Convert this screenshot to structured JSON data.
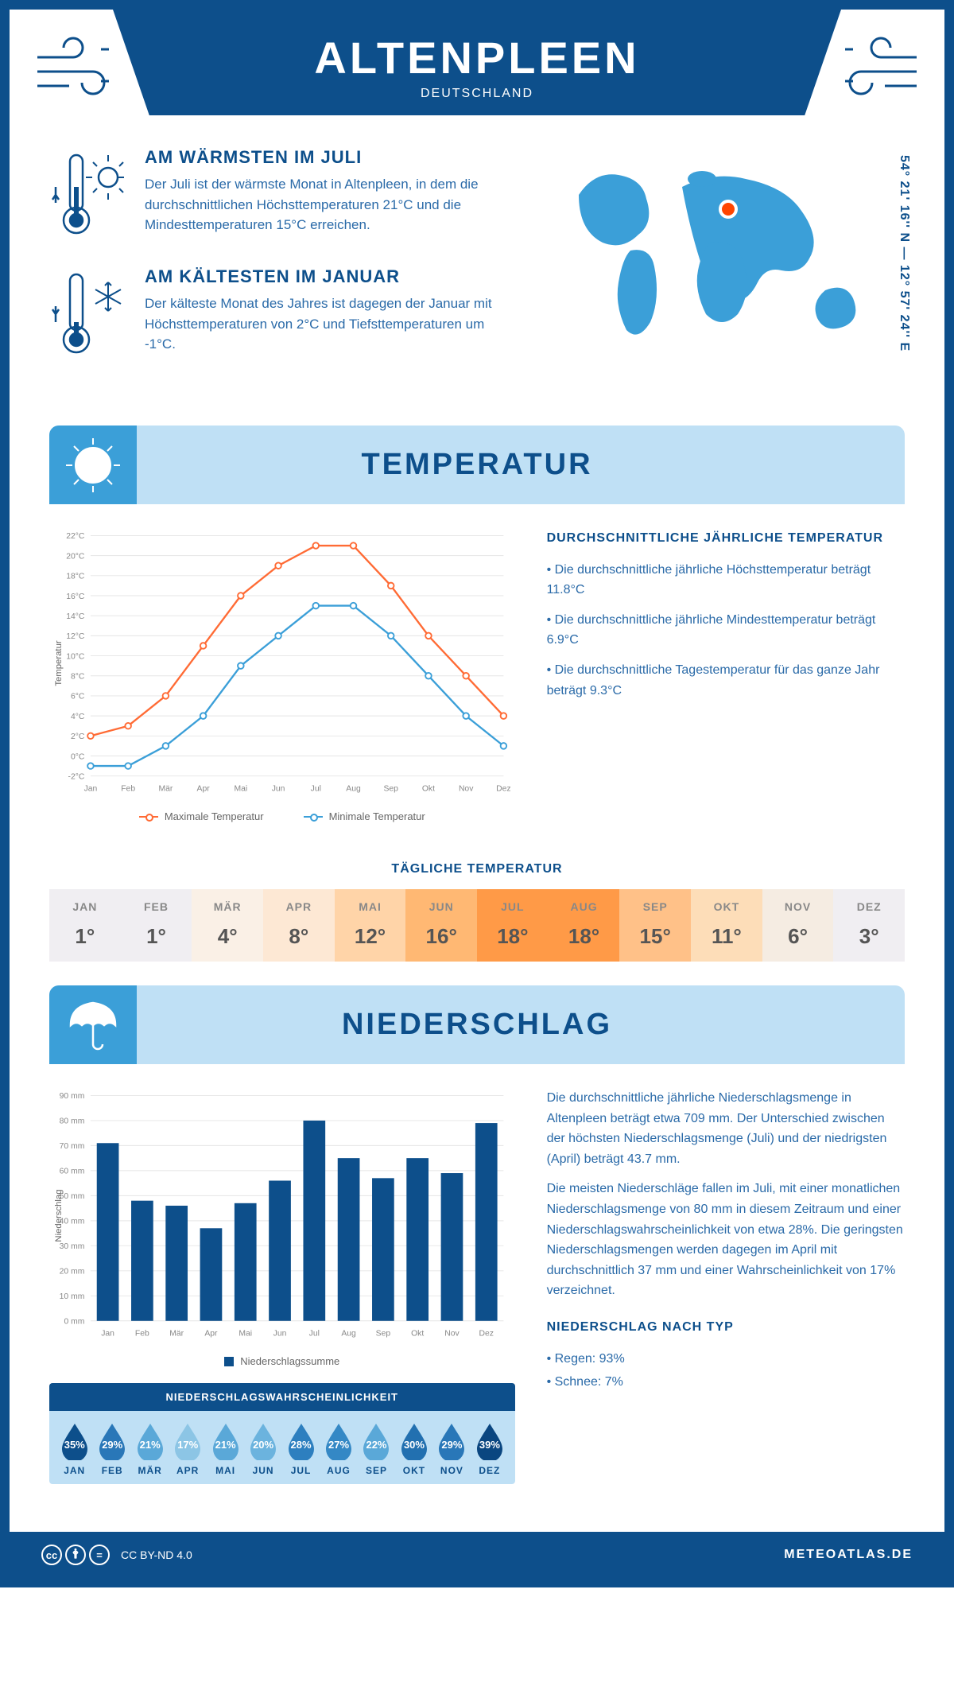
{
  "header": {
    "title": "ALTENPLEEN",
    "country": "DEUTSCHLAND",
    "coords": "54° 21' 16'' N — 12° 57' 24'' E"
  },
  "intro": {
    "warm": {
      "heading": "AM WÄRMSTEN IM JULI",
      "body": "Der Juli ist der wärmste Monat in Altenpleen, in dem die durchschnittlichen Höchsttemperaturen 21°C und die Mindesttemperaturen 15°C erreichen."
    },
    "cold": {
      "heading": "AM KÄLTESTEN IM JANUAR",
      "body": "Der kälteste Monat des Jahres ist dagegen der Januar mit Höchsttemperaturen von 2°C und Tiefsttemperaturen um -1°C."
    }
  },
  "temp_section": {
    "title": "TEMPERATUR",
    "chart": {
      "months": [
        "Jan",
        "Feb",
        "Mär",
        "Apr",
        "Mai",
        "Jun",
        "Jul",
        "Aug",
        "Sep",
        "Okt",
        "Nov",
        "Dez"
      ],
      "max": [
        2,
        3,
        6,
        11,
        16,
        19,
        21,
        21,
        17,
        12,
        8,
        4
      ],
      "min": [
        -1,
        -1,
        1,
        4,
        9,
        12,
        15,
        15,
        12,
        8,
        4,
        1
      ],
      "ymin": -2,
      "ymax": 22,
      "ystep": 2,
      "max_color": "#ff6b35",
      "min_color": "#3b9fd8",
      "ylabel": "Temperatur",
      "legend_max": "Maximale Temperatur",
      "legend_min": "Minimale Temperatur"
    },
    "text": {
      "heading": "DURCHSCHNITTLICHE JÄHRLICHE TEMPERATUR",
      "b1": "• Die durchschnittliche jährliche Höchsttemperatur beträgt 11.8°C",
      "b2": "• Die durchschnittliche jährliche Mindesttemperatur beträgt 6.9°C",
      "b3": "• Die durchschnittliche Tagestemperatur für das ganze Jahr beträgt 9.3°C"
    },
    "daily": {
      "title": "TÄGLICHE TEMPERATUR",
      "months": [
        "JAN",
        "FEB",
        "MÄR",
        "APR",
        "MAI",
        "JUN",
        "JUL",
        "AUG",
        "SEP",
        "OKT",
        "NOV",
        "DEZ"
      ],
      "values": [
        "1°",
        "1°",
        "4°",
        "8°",
        "12°",
        "16°",
        "18°",
        "18°",
        "15°",
        "11°",
        "6°",
        "3°"
      ],
      "colors": [
        "#f0eef2",
        "#f0eef2",
        "#faf0e6",
        "#fde8d4",
        "#ffd4a8",
        "#ffb873",
        "#ff9a47",
        "#ff9a47",
        "#ffc188",
        "#fdddb8",
        "#f5ece2",
        "#f0eef2"
      ]
    }
  },
  "precip_section": {
    "title": "NIEDERSCHLAG",
    "chart": {
      "months": [
        "Jan",
        "Feb",
        "Mär",
        "Apr",
        "Mai",
        "Jun",
        "Jul",
        "Aug",
        "Sep",
        "Okt",
        "Nov",
        "Dez"
      ],
      "values": [
        71,
        48,
        46,
        37,
        47,
        56,
        80,
        65,
        57,
        65,
        59,
        79
      ],
      "ymax": 90,
      "ystep": 10,
      "bar_color": "#0d4f8b",
      "ylabel": "Niederschlag",
      "legend": "Niederschlagssumme"
    },
    "text": {
      "p1": "Die durchschnittliche jährliche Niederschlagsmenge in Altenpleen beträgt etwa 709 mm. Der Unterschied zwischen der höchsten Niederschlagsmenge (Juli) und der niedrigsten (April) beträgt 43.7 mm.",
      "p2": "Die meisten Niederschläge fallen im Juli, mit einer monatlichen Niederschlagsmenge von 80 mm in diesem Zeitraum und einer Niederschlagswahrscheinlichkeit von etwa 28%. Die geringsten Niederschlagsmengen werden dagegen im April mit durchschnittlich 37 mm und einer Wahrscheinlichkeit von 17% verzeichnet.",
      "type_heading": "NIEDERSCHLAG NACH TYP",
      "t1": "• Regen: 93%",
      "t2": "• Schnee: 7%"
    },
    "prob": {
      "title": "NIEDERSCHLAGSWAHRSCHEINLICHKEIT",
      "months": [
        "JAN",
        "FEB",
        "MÄR",
        "APR",
        "MAI",
        "JUN",
        "JUL",
        "AUG",
        "SEP",
        "OKT",
        "NOV",
        "DEZ"
      ],
      "values": [
        "35%",
        "29%",
        "21%",
        "17%",
        "21%",
        "20%",
        "28%",
        "27%",
        "22%",
        "30%",
        "29%",
        "39%"
      ],
      "colors": [
        "#0d4f8b",
        "#2977b8",
        "#5aa8d8",
        "#8cc5e5",
        "#5aa8d8",
        "#6bb3de",
        "#2d7fbf",
        "#3488c5",
        "#5aa8d8",
        "#2270b0",
        "#2977b8",
        "#0a4680"
      ]
    }
  },
  "footer": {
    "license": "CC BY-ND 4.0",
    "site": "METEOATLAS.DE"
  }
}
